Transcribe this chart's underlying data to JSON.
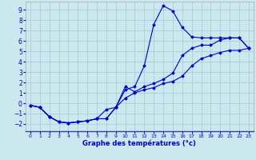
{
  "xlabel": "Graphe des températures (°c)",
  "bg_color": "#cce8ef",
  "grid_color": "#aacdd8",
  "line_color": "#0000cc",
  "xlim": [
    -0.5,
    23.5
  ],
  "ylim": [
    -2.7,
    9.8
  ],
  "xticks": [
    0,
    1,
    2,
    3,
    4,
    5,
    6,
    7,
    8,
    9,
    10,
    11,
    12,
    13,
    14,
    15,
    16,
    17,
    18,
    19,
    20,
    21,
    22,
    23
  ],
  "yticks": [
    -2,
    -1,
    0,
    1,
    2,
    3,
    4,
    5,
    6,
    7,
    8,
    9
  ],
  "line1_x": [
    0,
    1,
    2,
    3,
    4,
    5,
    6,
    7,
    8,
    9,
    10,
    11,
    12,
    13,
    14,
    15,
    16,
    17,
    18,
    19,
    20,
    21,
    22,
    23
  ],
  "line1_y": [
    -0.2,
    -0.4,
    -1.3,
    -1.8,
    -1.9,
    -1.8,
    -1.7,
    -1.5,
    -1.5,
    -0.4,
    0.5,
    1.0,
    1.3,
    1.5,
    1.9,
    2.1,
    2.6,
    3.6,
    4.3,
    4.6,
    4.9,
    5.1,
    5.1,
    5.3
  ],
  "line2_x": [
    0,
    1,
    2,
    3,
    4,
    5,
    6,
    7,
    8,
    9,
    10,
    11,
    12,
    13,
    14,
    15,
    16,
    17,
    18,
    19,
    20,
    21,
    22,
    23
  ],
  "line2_y": [
    -0.2,
    -0.4,
    -1.3,
    -1.8,
    -1.9,
    -1.8,
    -1.7,
    -1.5,
    -0.6,
    -0.4,
    1.3,
    1.6,
    3.6,
    7.6,
    9.4,
    8.9,
    7.3,
    6.4,
    6.3,
    6.3,
    6.3,
    6.3,
    6.3,
    5.3
  ],
  "line3_x": [
    0,
    1,
    2,
    3,
    4,
    5,
    6,
    7,
    8,
    9,
    10,
    11,
    12,
    13,
    14,
    15,
    16,
    17,
    18,
    19,
    20,
    21,
    22,
    23
  ],
  "line3_y": [
    -0.2,
    -0.4,
    -1.3,
    -1.8,
    -1.9,
    -1.8,
    -1.7,
    -1.5,
    -1.5,
    -0.4,
    1.6,
    1.1,
    1.6,
    1.9,
    2.3,
    2.9,
    4.6,
    5.3,
    5.6,
    5.6,
    6.1,
    6.3,
    6.3,
    5.3
  ]
}
